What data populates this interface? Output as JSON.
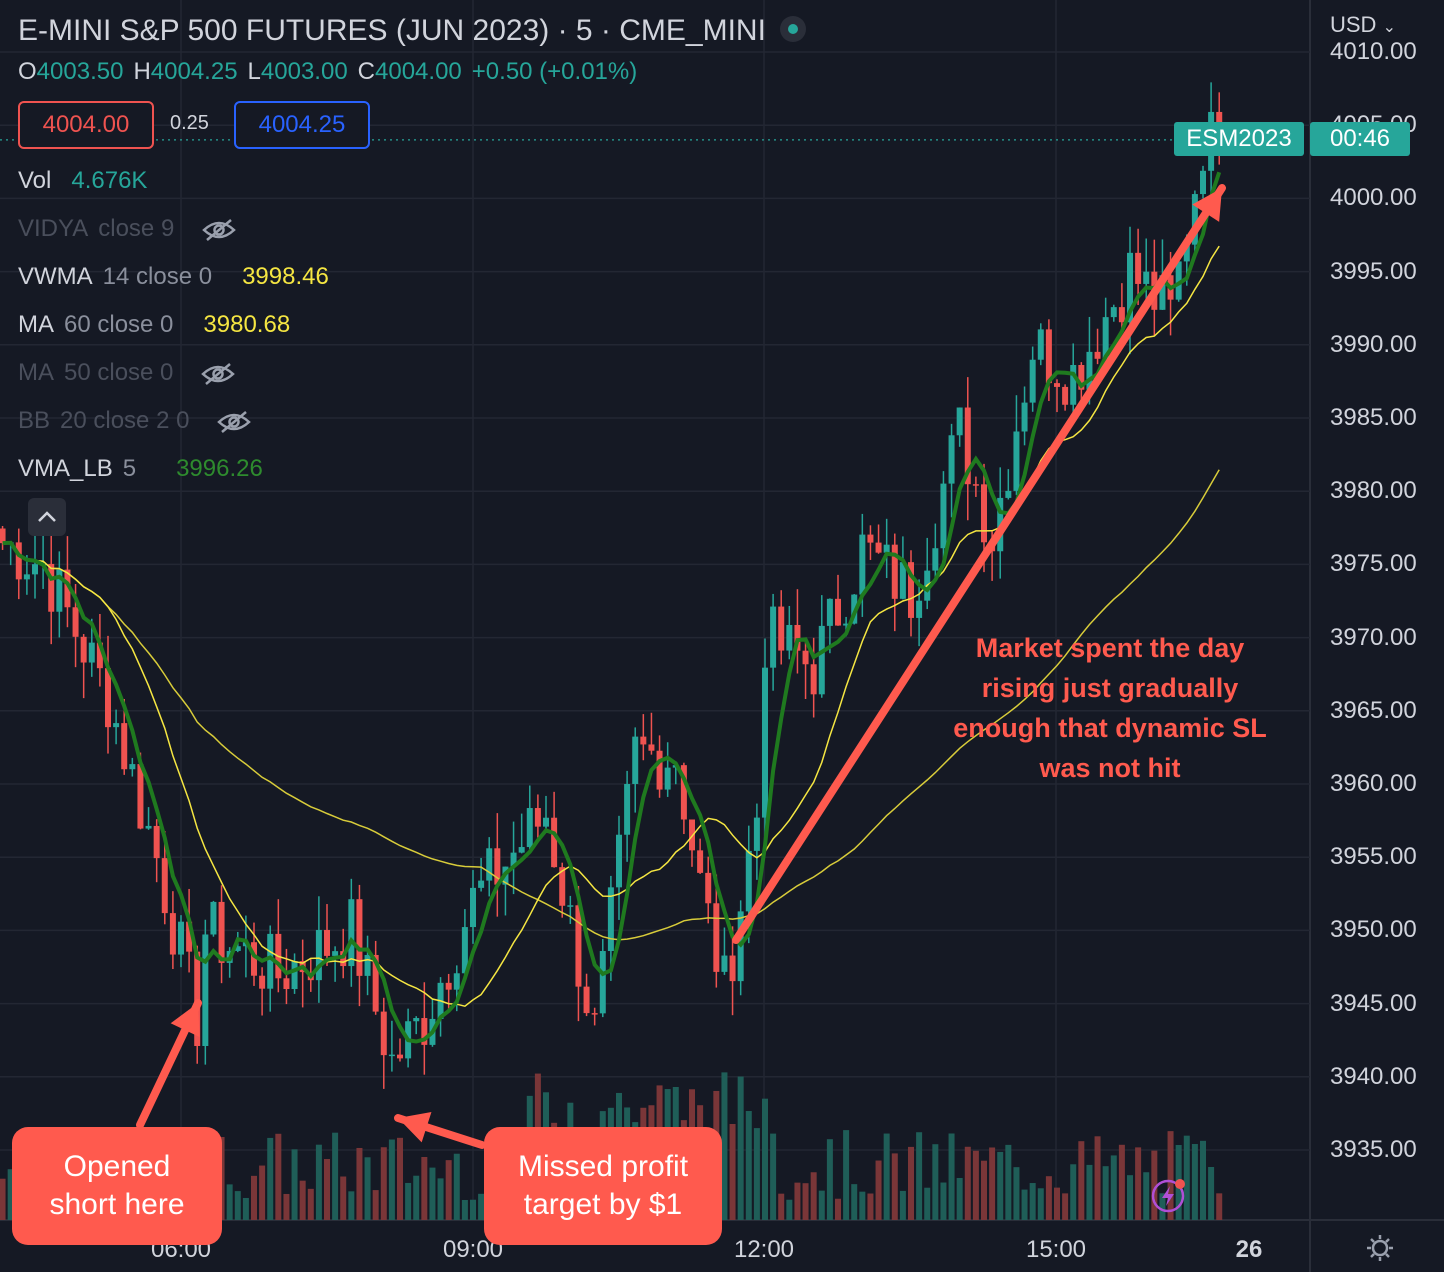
{
  "header": {
    "title": "E-MINI S&P 500 FUTURES (JUN 2023) · 5 · CME_MINI",
    "ohlc": {
      "o_label": "O",
      "o": "4003.50",
      "h_label": "H",
      "h": "4004.25",
      "l_label": "L",
      "l": "4003.00",
      "c_label": "C",
      "c": "4004.00",
      "change": "+0.50 (+0.01%)"
    },
    "bid": "4004.00",
    "spread": "0.25",
    "ask": "4004.25"
  },
  "indicators": [
    {
      "name": "Vol",
      "params": "",
      "value": "4.676K",
      "color": "#26a69a",
      "hidden": false
    },
    {
      "name": "VIDYA",
      "params": "close 9",
      "value": "",
      "color": "",
      "hidden": true
    },
    {
      "name": "VWMA",
      "params": "14 close 0",
      "value": "3998.46",
      "color": "#f5e642",
      "hidden": false
    },
    {
      "name": "MA",
      "params": "60 close 0",
      "value": "3980.68",
      "color": "#f5e642",
      "hidden": false
    },
    {
      "name": "MA",
      "params": "50 close 0",
      "value": "",
      "color": "",
      "hidden": true
    },
    {
      "name": "BB",
      "params": "20 close 2 0",
      "value": "",
      "color": "",
      "hidden": true
    },
    {
      "name": "VMA_LB",
      "params": "5",
      "value": "3996.26",
      "color": "#2e8b2e",
      "hidden": false
    }
  ],
  "axis": {
    "currency": "USD",
    "currency_chevron": "chevron-down",
    "y_ticks": [
      "4010.00",
      "4005.00",
      "4000.00",
      "3995.00",
      "3990.00",
      "3985.00",
      "3980.00",
      "3975.00",
      "3970.00",
      "3965.00",
      "3960.00",
      "3955.00",
      "3950.00",
      "3945.00",
      "3940.00",
      "3935.00"
    ],
    "x_ticks": [
      "06:00",
      "09:00",
      "12:00",
      "15:00",
      "26"
    ]
  },
  "price_tag": {
    "symbol": "ESM2023",
    "countdown": "00:46"
  },
  "annotations": {
    "opened_short": "Opened short here",
    "missed_target": "Missed profit target by $1",
    "market_note_lines": [
      "Market spent the day",
      "rising just gradually",
      "enough that dynamic SL",
      "was not hit"
    ]
  },
  "colors": {
    "up": "#26a69a",
    "down": "#ef5350",
    "annotation": "#ff5a4e",
    "background": "#151924"
  },
  "chart_data": {
    "type": "candlestick",
    "interval": "5",
    "yrange": [
      3930,
      4010
    ],
    "x_ticks": [
      "06:00",
      "09:00",
      "12:00",
      "15:00"
    ],
    "close_anchors": [
      {
        "t": "04:35",
        "close": 3975
      },
      {
        "t": "05:15",
        "close": 3966
      },
      {
        "t": "05:45",
        "close": 3955
      },
      {
        "t": "06:10",
        "close": 3944
      },
      {
        "t": "06:15",
        "close": 3950
      },
      {
        "t": "07:00",
        "close": 3947
      },
      {
        "t": "07:45",
        "close": 3950
      },
      {
        "t": "08:10",
        "close": 3941
      },
      {
        "t": "08:30",
        "close": 3944
      },
      {
        "t": "09:00",
        "close": 3952
      },
      {
        "t": "09:45",
        "close": 3958
      },
      {
        "t": "10:15",
        "close": 3943
      },
      {
        "t": "10:40",
        "close": 3962
      },
      {
        "t": "11:05",
        "close": 3962
      },
      {
        "t": "11:20",
        "close": 3953
      },
      {
        "t": "11:35",
        "close": 3946
      },
      {
        "t": "11:55",
        "close": 3958
      },
      {
        "t": "12:00",
        "close": 3970
      },
      {
        "t": "12:30",
        "close": 3968
      },
      {
        "t": "13:00",
        "close": 3976
      },
      {
        "t": "13:30",
        "close": 3973
      },
      {
        "t": "14:00",
        "close": 3984
      },
      {
        "t": "14:20",
        "close": 3977
      },
      {
        "t": "14:45",
        "close": 3990
      },
      {
        "t": "15:10",
        "close": 3988
      },
      {
        "t": "15:45",
        "close": 3995
      },
      {
        "t": "16:10",
        "close": 3992
      },
      {
        "t": "16:30",
        "close": 4004
      }
    ],
    "last": {
      "open": 4003.5,
      "high": 4004.25,
      "low": 4003.0,
      "close": 4004.0
    },
    "overlays": {
      "VWMA 14": 3998.46,
      "MA 60": 3980.68,
      "VMA_LB 5": 3996.26
    },
    "volume_last": "4.676K"
  }
}
